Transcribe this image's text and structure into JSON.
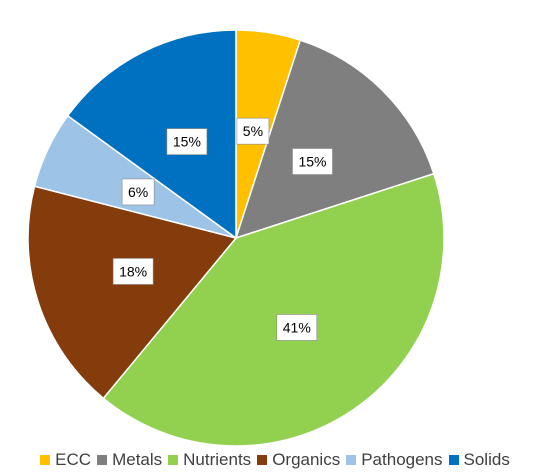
{
  "chart_data": {
    "type": "pie",
    "slices": [
      {
        "name": "ECC",
        "value": 5,
        "label": "5%",
        "color": "#FFC000"
      },
      {
        "name": "Metals",
        "value": 15,
        "label": "15%",
        "color": "#7F7F7F"
      },
      {
        "name": "Nutrients",
        "value": 41,
        "label": "41%",
        "color": "#92D050"
      },
      {
        "name": "Organics",
        "value": 18,
        "label": "18%",
        "color": "#843C0C"
      },
      {
        "name": "Pathogens",
        "value": 6,
        "label": "6%",
        "color": "#9DC3E6"
      },
      {
        "name": "Solids",
        "value": 15,
        "label": "15%",
        "color": "#0070C0"
      }
    ],
    "start_angle": "12 o'clock",
    "direction": "clockwise",
    "legend_position": "bottom",
    "title": ""
  }
}
